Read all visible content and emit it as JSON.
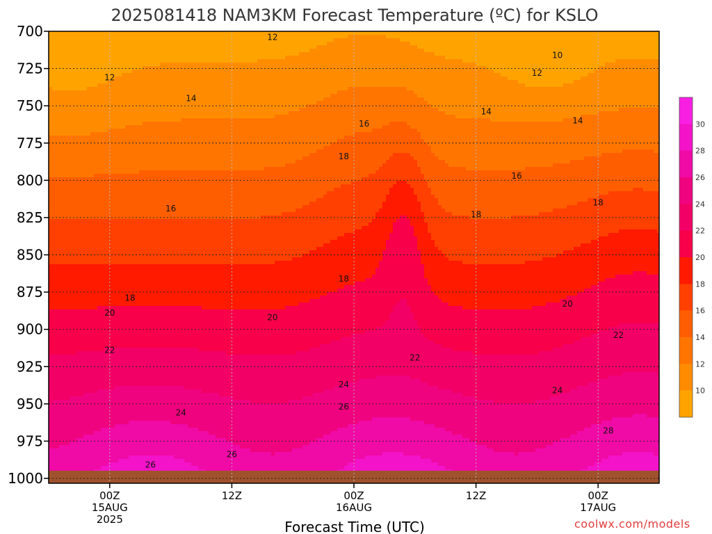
{
  "chart_data": {
    "type": "heatmap",
    "title": "2025081418 NAM3KM Forecast Temperature (ºC) for KSLO",
    "xlabel": "Forecast Time (UTC)",
    "ylabel": "",
    "y_ticks": [
      700,
      725,
      750,
      775,
      800,
      825,
      850,
      875,
      900,
      925,
      950,
      975,
      1000
    ],
    "ylim": [
      700,
      1000
    ],
    "y_scale": "pressure (inverted, top = 700)",
    "x_ticks": [
      {
        "line1": "00Z",
        "line2": "15AUG",
        "line3": "2025"
      },
      {
        "line1": "12Z",
        "line2": "",
        "line3": ""
      },
      {
        "line1": "00Z",
        "line2": "16AUG",
        "line3": ""
      },
      {
        "line1": "12Z",
        "line2": "",
        "line3": ""
      },
      {
        "line1": "00Z",
        "line2": "17AUG",
        "line3": ""
      }
    ],
    "x_tick_hours": [
      0,
      12,
      24,
      36,
      48
    ],
    "xlim_hours": [
      -6,
      54
    ],
    "grid": true,
    "colorbar": {
      "levels": [
        10,
        12,
        14,
        16,
        18,
        20,
        22,
        24,
        26,
        28,
        30
      ],
      "labels": [
        "10",
        "12",
        "14",
        "16",
        "18",
        "20",
        "22",
        "24",
        "26",
        "28",
        "30"
      ],
      "range": [
        8,
        32
      ],
      "colors": [
        "#ffa300",
        "#ff8c00",
        "#ff7500",
        "#ff5e00",
        "#ff4000",
        "#ff1a00",
        "#f8004a",
        "#f20066",
        "#f0037e",
        "#f00aa6",
        "#f313c8",
        "#f81ee2"
      ]
    },
    "contour_labels": [
      {
        "text": "12",
        "hour": 16,
        "pressure": 704
      },
      {
        "text": "10",
        "hour": 44,
        "pressure": 716
      },
      {
        "text": "12",
        "hour": 0,
        "pressure": 731
      },
      {
        "text": "12",
        "hour": 42,
        "pressure": 728
      },
      {
        "text": "14",
        "hour": 8,
        "pressure": 745
      },
      {
        "text": "14",
        "hour": 37,
        "pressure": 754
      },
      {
        "text": "14",
        "hour": 46,
        "pressure": 760
      },
      {
        "text": "16",
        "hour": 25,
        "pressure": 762
      },
      {
        "text": "16",
        "hour": 40,
        "pressure": 797
      },
      {
        "text": "18",
        "hour": 23,
        "pressure": 784
      },
      {
        "text": "16",
        "hour": 6,
        "pressure": 819
      },
      {
        "text": "18",
        "hour": 36,
        "pressure": 823
      },
      {
        "text": "18",
        "hour": 48,
        "pressure": 815
      },
      {
        "text": "18",
        "hour": 23,
        "pressure": 866
      },
      {
        "text": "18",
        "hour": 2,
        "pressure": 879
      },
      {
        "text": "20",
        "hour": 0,
        "pressure": 889
      },
      {
        "text": "20",
        "hour": 16,
        "pressure": 892
      },
      {
        "text": "20",
        "hour": 45,
        "pressure": 883
      },
      {
        "text": "22",
        "hour": 0,
        "pressure": 914
      },
      {
        "text": "22",
        "hour": 30,
        "pressure": 919
      },
      {
        "text": "22",
        "hour": 50,
        "pressure": 904
      },
      {
        "text": "24",
        "hour": 23,
        "pressure": 937
      },
      {
        "text": "24",
        "hour": 7,
        "pressure": 956
      },
      {
        "text": "24",
        "hour": 44,
        "pressure": 941
      },
      {
        "text": "26",
        "hour": 23,
        "pressure": 952
      },
      {
        "text": "26",
        "hour": 12,
        "pressure": 984
      },
      {
        "text": "26",
        "hour": 4,
        "pressure": 991
      },
      {
        "text": "28",
        "hour": 49,
        "pressure": 968
      }
    ],
    "ground_color": "#a0522d"
  },
  "watermark": "coolwx.com/models"
}
